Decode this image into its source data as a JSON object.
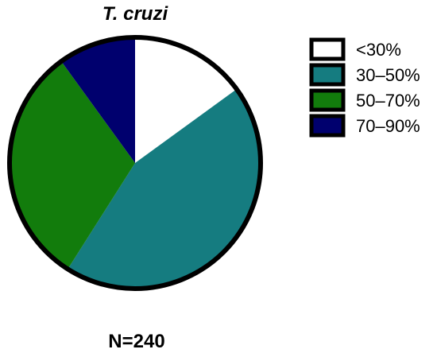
{
  "chart_data": {
    "type": "pie",
    "title": "T. cruzi",
    "footer": "N=240",
    "legend_position": "right",
    "categories": [
      "<30%",
      "30–50%",
      "50–70%",
      "70–90%"
    ],
    "values": [
      15,
      44,
      31,
      10
    ],
    "colors": [
      "#ffffff",
      "#157c80",
      "#127c0c",
      "#00006e"
    ],
    "border_color": "#000000"
  }
}
